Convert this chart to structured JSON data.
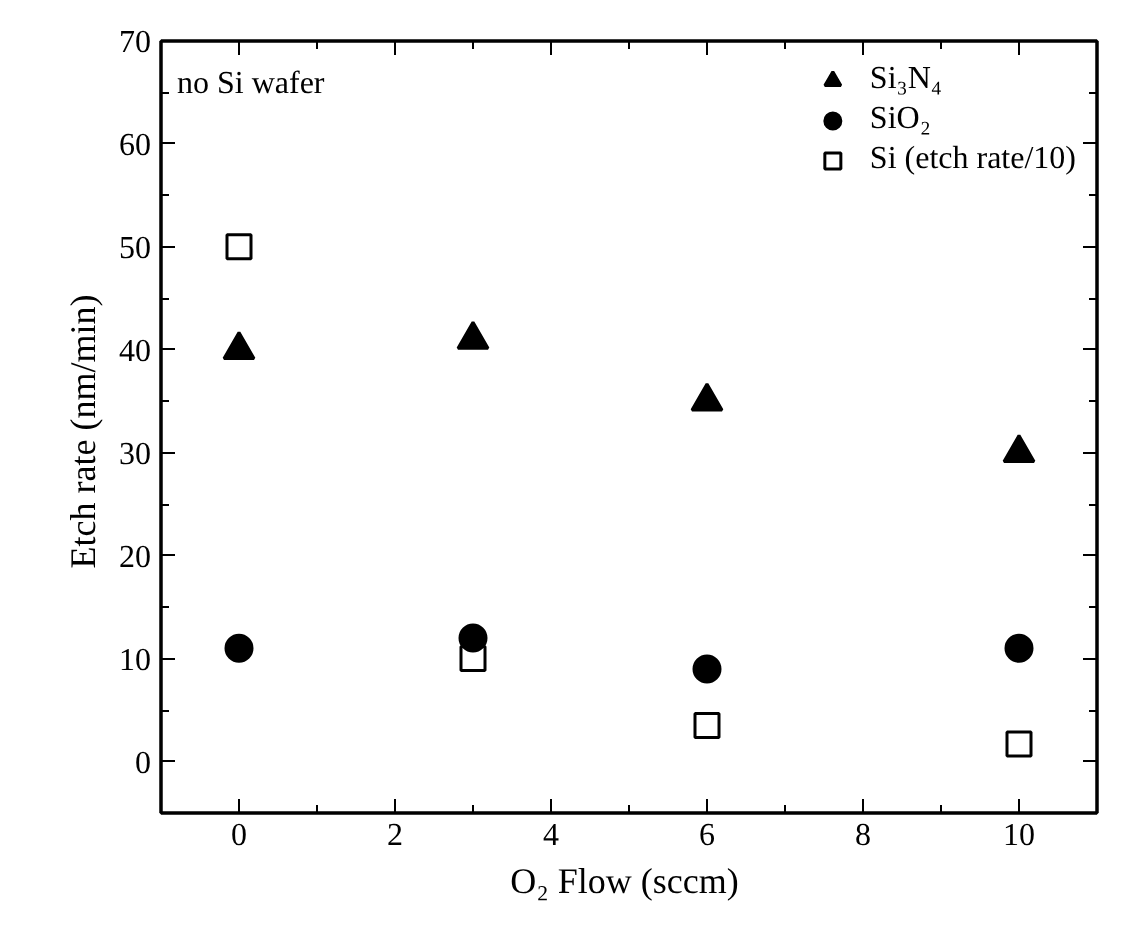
{
  "chart_data": {
    "type": "scatter",
    "xlabel": "O₂ Flow  (sccm)",
    "ylabel": "Etch rate  (nm/min)",
    "x": [
      0,
      3,
      6,
      10
    ],
    "series": [
      {
        "name": "Si₃N₄",
        "color": "#000000",
        "marker": "triangle",
        "values": [
          40,
          41,
          35,
          30
        ]
      },
      {
        "name": "SiO₂",
        "color": "#000000",
        "marker": "circle",
        "values": [
          11,
          12,
          9,
          11
        ]
      },
      {
        "name": "Si (etch rate/10)",
        "color": "#000000",
        "marker": "square",
        "values": [
          50,
          10,
          3.5,
          1.7
        ]
      }
    ],
    "xlim": [
      -1,
      11
    ],
    "ylim": [
      -5,
      70
    ],
    "xticks": [
      0,
      2,
      4,
      6,
      8,
      10
    ],
    "yticks": [
      0,
      10,
      20,
      30,
      40,
      50,
      60,
      70
    ],
    "annotations": [
      "no Si wafer"
    ],
    "grid": false,
    "legend": "top right"
  }
}
